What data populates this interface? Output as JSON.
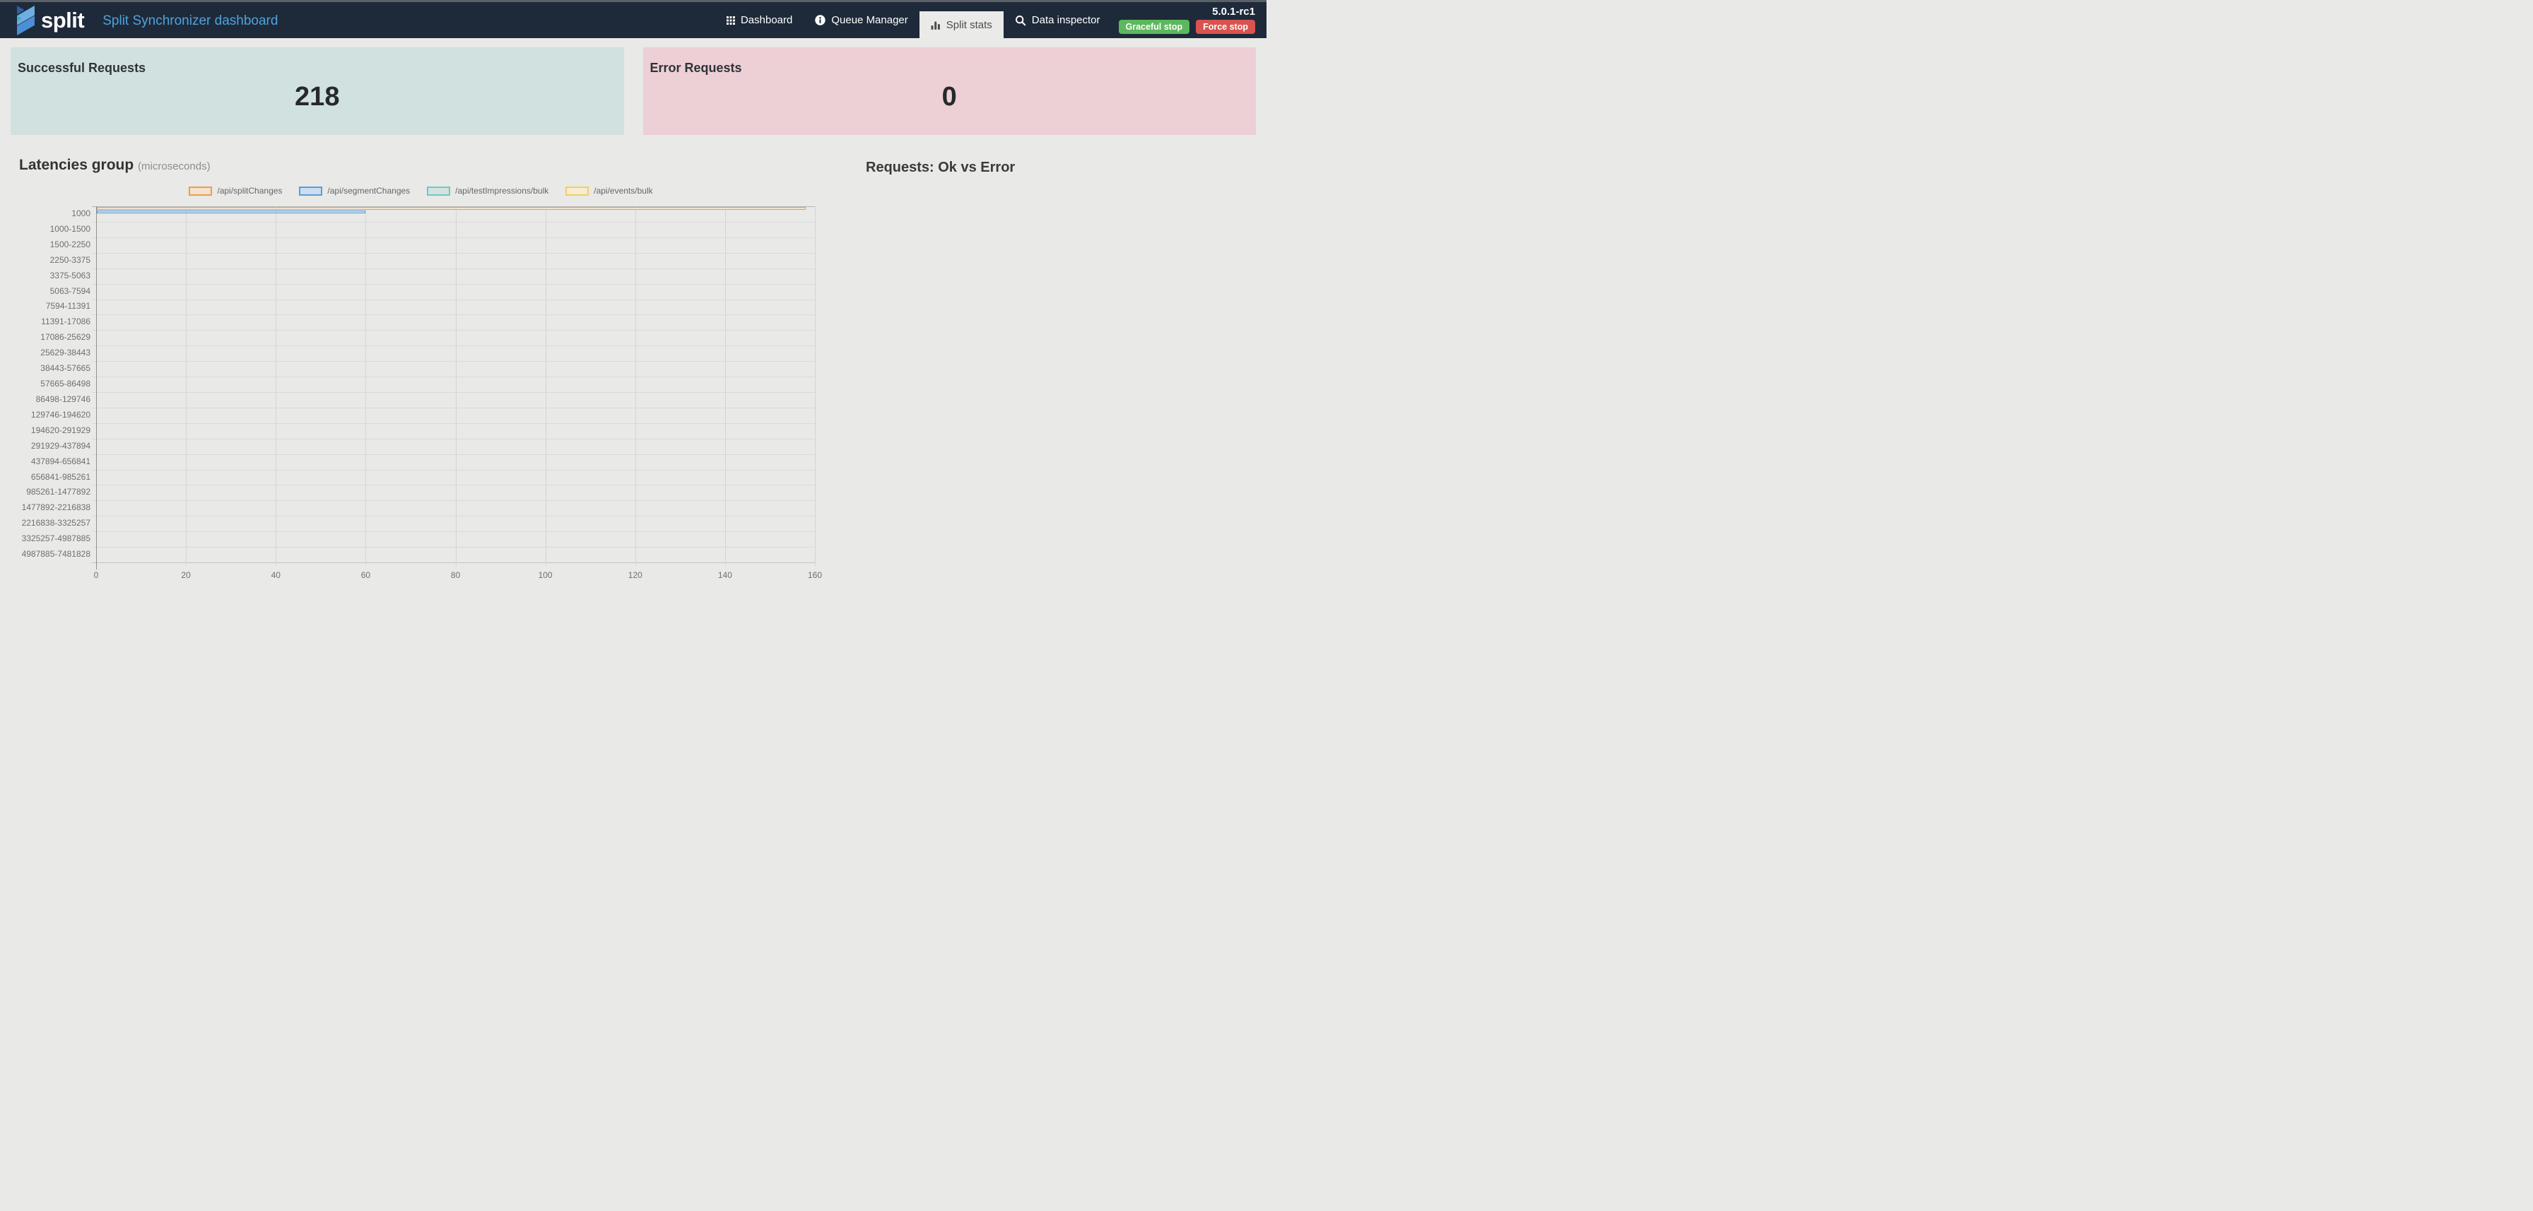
{
  "navbar": {
    "brand": "split",
    "title": "Split Synchronizer dashboard",
    "items": [
      {
        "label": "Dashboard",
        "icon": "grid-icon",
        "active": false
      },
      {
        "label": "Queue Manager",
        "icon": "info-icon",
        "active": false
      },
      {
        "label": "Split stats",
        "icon": "bar-chart-icon",
        "active": true
      },
      {
        "label": "Data inspector",
        "icon": "search-icon",
        "active": false
      }
    ],
    "version": "5.0.1-rc1",
    "buttons": [
      {
        "label": "Graceful stop",
        "color": "#5CB85C"
      },
      {
        "label": "Force stop",
        "color": "#D9534F"
      }
    ],
    "colors": {
      "background": "#1E2A3A",
      "title_accent": "#4FA3DC",
      "active_tab_bg": "#EAEAE8"
    }
  },
  "cards": [
    {
      "title": "Successful Requests",
      "value": "218",
      "bg": "#D1E1E0"
    },
    {
      "title": "Error Requests",
      "value": "0",
      "bg": "#EDCFD6"
    }
  ],
  "sections": {
    "latency": {
      "title": "Latencies group",
      "subtitle": "(microseconds)"
    },
    "requests": {
      "title": "Requests: Ok vs Error"
    }
  },
  "chart_data": {
    "type": "bar",
    "orientation": "horizontal",
    "title": "Latencies group (microseconds)",
    "legend_position": "top",
    "grid": true,
    "xlim": [
      0,
      160
    ],
    "xticks": [
      0,
      20,
      40,
      60,
      80,
      100,
      120,
      140,
      160
    ],
    "categories": [
      "1000",
      "1000-1500",
      "1500-2250",
      "2250-3375",
      "3375-5063",
      "5063-7594",
      "7594-11391",
      "11391-17086",
      "17086-25629",
      "25629-38443",
      "38443-57665",
      "57665-86498",
      "86498-129746",
      "129746-194620",
      "194620-291929",
      "291929-437894",
      "437894-656841",
      "656841-985261",
      "985261-1477892",
      "1477892-2216838",
      "2216838-3325257",
      "3325257-4987885",
      "4987885-7481828"
    ],
    "series": [
      {
        "name": "/api/splitChanges",
        "color": "#EF9D4D",
        "fill": "#F3E2CE",
        "values": [
          158,
          0,
          0,
          0,
          0,
          0,
          0,
          0,
          0,
          0,
          0,
          0,
          0,
          0,
          0,
          0,
          0,
          0,
          0,
          0,
          0,
          0,
          0
        ]
      },
      {
        "name": "/api/segmentChanges",
        "color": "#5E9CD6",
        "fill": "#CBDDF0",
        "values": [
          60,
          0,
          0,
          0,
          0,
          0,
          0,
          0,
          0,
          0,
          0,
          0,
          0,
          0,
          0,
          0,
          0,
          0,
          0,
          0,
          0,
          0,
          0
        ]
      },
      {
        "name": "/api/testImpressions/bulk",
        "color": "#74C6C0",
        "fill": "#D2E4E1",
        "values": [
          0,
          0,
          0,
          0,
          0,
          0,
          0,
          0,
          0,
          0,
          0,
          0,
          0,
          0,
          0,
          0,
          0,
          0,
          0,
          0,
          0,
          0,
          0
        ]
      },
      {
        "name": "/api/events/bulk",
        "color": "#F2CE63",
        "fill": "#F5ECD2",
        "values": [
          0,
          0,
          0,
          0,
          0,
          0,
          0,
          0,
          0,
          0,
          0,
          0,
          0,
          0,
          0,
          0,
          0,
          0,
          0,
          0,
          0,
          0,
          0
        ]
      }
    ]
  }
}
